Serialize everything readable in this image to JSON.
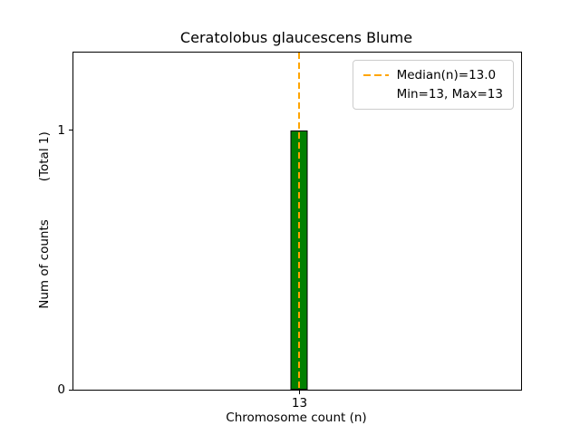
{
  "chart_data": {
    "type": "bar",
    "title": "Ceratolobus glaucescens Blume",
    "xlabel": "Chromosome count (n)",
    "ylabel": "Num of counts",
    "ylabel_suffix": "(Total 1)",
    "categories": [
      "13"
    ],
    "values": [
      1
    ],
    "yticks": [
      0,
      1
    ],
    "ylim": [
      0,
      1.3
    ],
    "grid": "off",
    "bar_color": "#008000",
    "bar_edge_color": "#000000",
    "median_line": {
      "value": 13.0,
      "color": "#FFA500",
      "style": "dashed"
    },
    "legend": {
      "position": "upper right",
      "entries": [
        "Median(n)=13.0",
        "Min=13, Max=13"
      ]
    }
  }
}
